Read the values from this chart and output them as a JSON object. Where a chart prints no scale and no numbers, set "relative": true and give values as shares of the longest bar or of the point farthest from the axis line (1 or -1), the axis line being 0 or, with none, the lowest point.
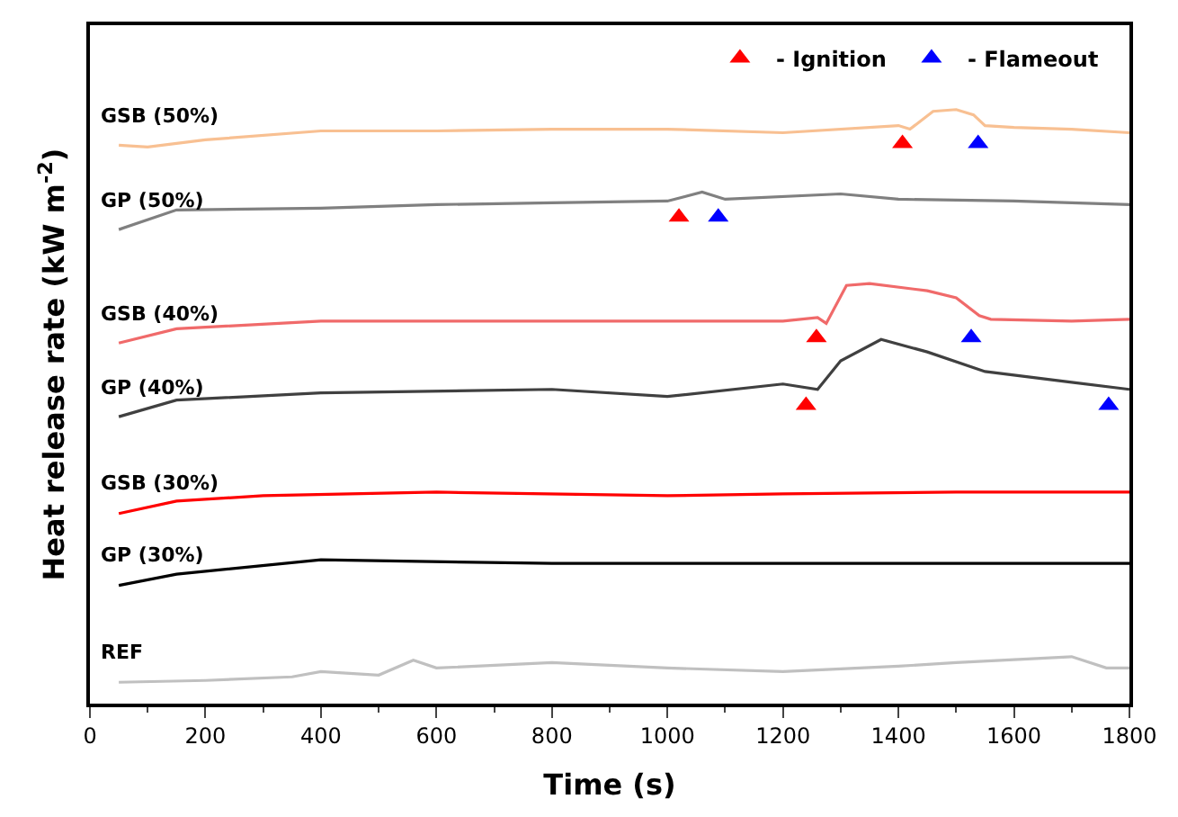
{
  "chart_data": {
    "type": "line",
    "relative": true,
    "xlabel": "Time (s)",
    "ylabel": "Heat release rate (kW m$^{-2}$)",
    "xlim": [
      0,
      1800
    ],
    "xticks": [
      0,
      200,
      400,
      600,
      800,
      1000,
      1200,
      1400,
      1600,
      1800
    ],
    "legend": "top right",
    "marker": "none",
    "line_style": "solid",
    "series": [
      {
        "name": "GSB (50%)",
        "color": "#f8c092",
        "x": [
          50,
          100,
          200,
          400,
          600,
          800,
          1000,
          1200,
          1400,
          1420,
          1460,
          1500,
          1530,
          1550,
          1600,
          1700,
          1800
        ],
        "values": [
          0.94,
          0.937,
          0.949,
          0.964,
          0.964,
          0.967,
          0.967,
          0.961,
          0.973,
          0.967,
          0.997,
          1.0,
          0.991,
          0.973,
          0.97,
          0.967,
          0.961
        ]
      },
      {
        "name": "GP (50%)",
        "color": "#808080",
        "x": [
          50,
          150,
          400,
          600,
          800,
          1000,
          1060,
          1100,
          1300,
          1400,
          1600,
          1800
        ],
        "values": [
          0.798,
          0.831,
          0.834,
          0.84,
          0.843,
          0.846,
          0.861,
          0.849,
          0.858,
          0.849,
          0.846,
          0.84
        ]
      },
      {
        "name": "GSB (40%)",
        "color": "#f06a6a",
        "x": [
          50,
          150,
          400,
          800,
          1200,
          1260,
          1275,
          1310,
          1350,
          1450,
          1500,
          1540,
          1560,
          1700,
          1800
        ],
        "values": [
          0.607,
          0.631,
          0.644,
          0.644,
          0.644,
          0.65,
          0.64,
          0.704,
          0.707,
          0.695,
          0.683,
          0.653,
          0.647,
          0.644,
          0.647
        ]
      },
      {
        "name": "GP (40%)",
        "color": "#404040",
        "x": [
          50,
          150,
          400,
          800,
          1000,
          1200,
          1260,
          1300,
          1370,
          1450,
          1550,
          1700,
          1800
        ],
        "values": [
          0.483,
          0.511,
          0.523,
          0.529,
          0.517,
          0.538,
          0.529,
          0.577,
          0.613,
          0.592,
          0.559,
          0.541,
          0.529
        ]
      },
      {
        "name": "GSB (30%)",
        "color": "#ff0000",
        "x": [
          50,
          150,
          300,
          600,
          1000,
          1200,
          1500,
          1800
        ],
        "values": [
          0.32,
          0.341,
          0.35,
          0.356,
          0.35,
          0.353,
          0.356,
          0.356
        ]
      },
      {
        "name": "GP (30%)",
        "color": "#000000",
        "x": [
          50,
          150,
          400,
          800,
          1000,
          1200,
          1500,
          1800
        ],
        "values": [
          0.199,
          0.218,
          0.242,
          0.236,
          0.236,
          0.236,
          0.236,
          0.236
        ]
      },
      {
        "name": "REF",
        "color": "#c0c0c0",
        "x": [
          50,
          200,
          350,
          400,
          500,
          560,
          600,
          800,
          1000,
          1200,
          1400,
          1500,
          1700,
          1760,
          1800
        ],
        "values": [
          0.036,
          0.039,
          0.045,
          0.054,
          0.048,
          0.073,
          0.06,
          0.069,
          0.06,
          0.054,
          0.063,
          0.069,
          0.079,
          0.06,
          0.06
        ]
      },
      {
        "name": "- Ignition",
        "type": "scatter",
        "marker": "triangle",
        "color": "#ff0000",
        "x": [
          1407,
          1020,
          1258,
          1240
        ],
        "values": [
          0.943,
          0.819,
          0.616,
          0.502
        ]
      },
      {
        "name": "- Flameout",
        "type": "scatter",
        "marker": "triangle",
        "color": "#0000ff",
        "x": [
          1538,
          1088,
          1526,
          1764
        ],
        "values": [
          0.943,
          0.819,
          0.616,
          0.502
        ]
      }
    ]
  }
}
